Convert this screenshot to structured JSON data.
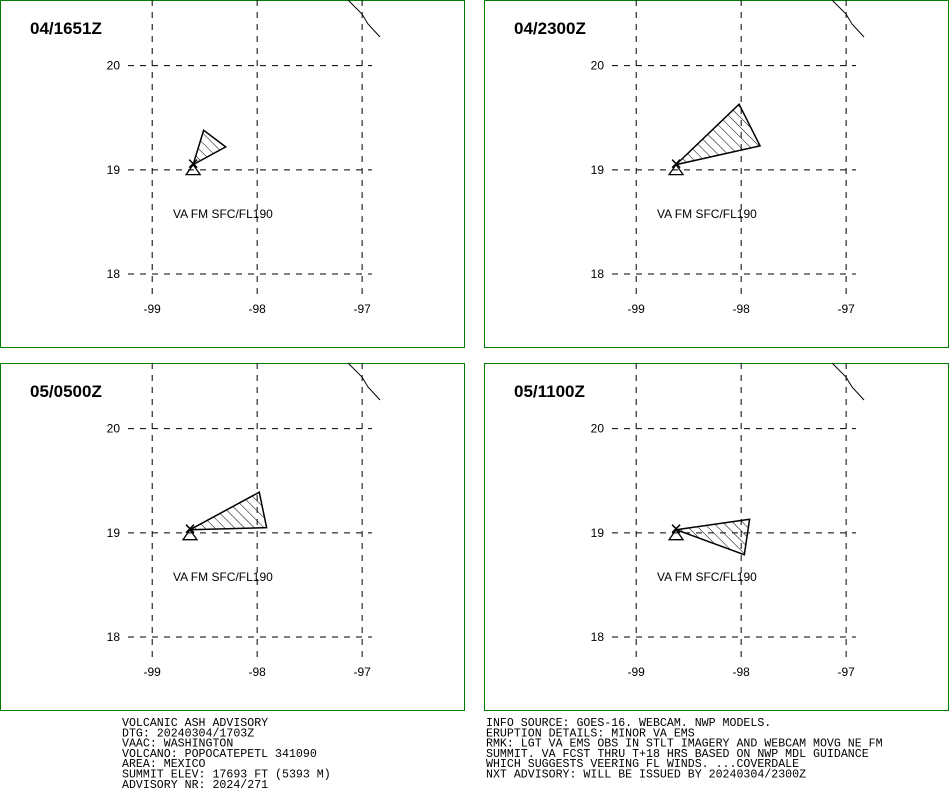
{
  "map": {
    "xlim": [
      -100.45,
      -96.02
    ],
    "ylim": [
      17.29,
      20.63
    ],
    "lon_ticks": [
      -99,
      -98,
      -97
    ],
    "lat_ticks": [
      20,
      19,
      18
    ],
    "panels": [
      {
        "time": "04/1651Z",
        "label": "VA FM SFC/FL190",
        "polygon": {
          "lon": [
            -98.61,
            -98.51,
            -98.3
          ],
          "lat": [
            19.05,
            19.38,
            19.22
          ]
        }
      },
      {
        "time": "04/2300Z",
        "label": "VA FM SFC/FL190",
        "polygon": {
          "lon": [
            -98.62,
            -98.02,
            -97.82
          ],
          "lat": [
            19.05,
            19.63,
            19.23
          ]
        }
      },
      {
        "time": "05/0500Z",
        "label": "VA FM SFC/FL190",
        "polygon": {
          "lon": [
            -98.64,
            -97.98,
            -97.91
          ],
          "lat": [
            19.03,
            19.39,
            19.05
          ]
        }
      },
      {
        "time": "05/1100Z",
        "label": "VA FM SFC/FL190",
        "polygon": {
          "lon": [
            -98.62,
            -97.92,
            -97.97
          ],
          "lat": [
            19.03,
            19.13,
            18.79
          ]
        }
      }
    ]
  },
  "advisory": {
    "left": [
      "VOLCANIC ASH ADVISORY",
      "DTG: 20240304/1703Z",
      "VAAC: WASHINGTON",
      "VOLCANO: POPOCATEPETL 341090",
      "AREA: MEXICO",
      "SUMMIT ELEV: 17693 FT (5393 M)",
      "ADVISORY NR: 2024/271"
    ],
    "right": [
      "INFO SOURCE: GOES-16. WEBCAM. NWP MODELS.",
      "ERUPTION DETAILS: MINOR VA EMS",
      "RMK: LGT VA EMS OBS IN STLT IMAGERY AND WEBCAM MOVG NE FM",
      "SUMMIT. VA FCST THRU T+18 HRS BASED ON NWP MDL GUIDANCE",
      "WHICH SUGGESTS VEERING FL WINDS. ...COVERDALE",
      "NXT ADVISORY: WILL BE ISSUED BY 20240304/2300Z"
    ]
  }
}
